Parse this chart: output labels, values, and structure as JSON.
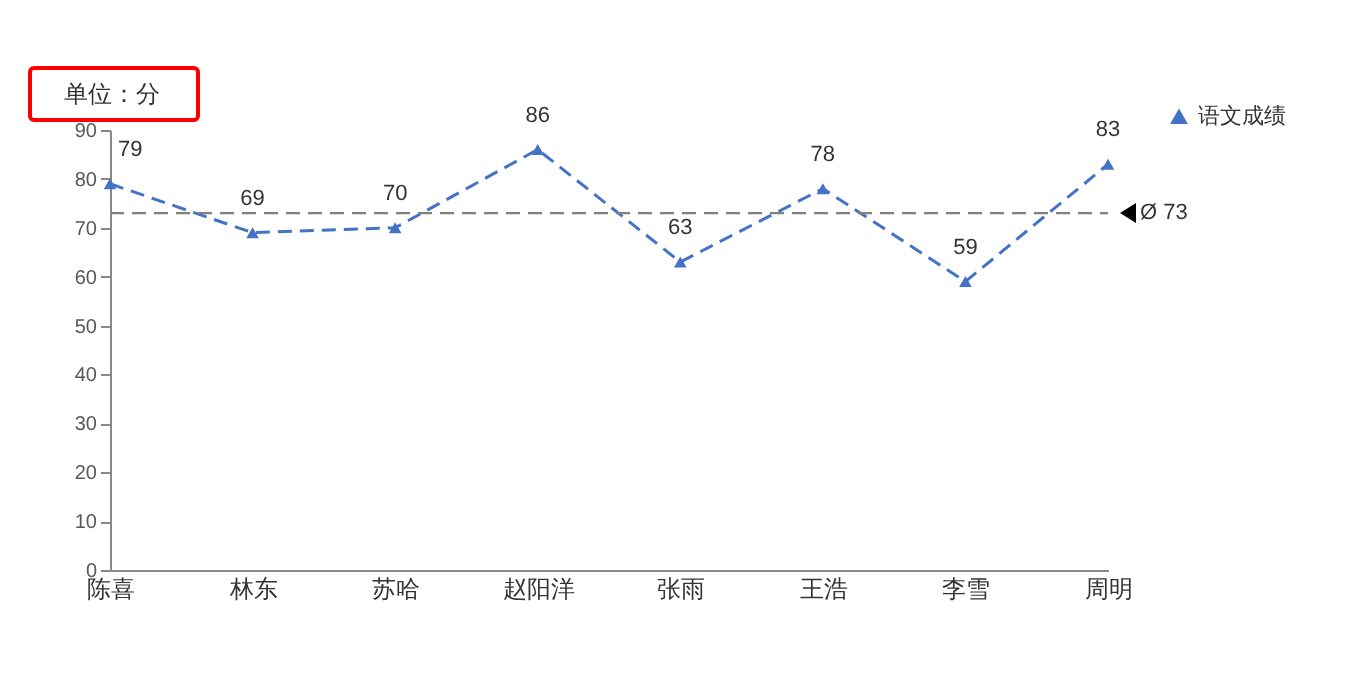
{
  "chart_data": {
    "type": "line",
    "categories": [
      "陈喜",
      "林东",
      "苏哈",
      "赵阳洋",
      "张雨",
      "王浩",
      "李雪",
      "周明"
    ],
    "series": [
      {
        "name": "语文成绩",
        "color": "#4472c4",
        "values": [
          79,
          69,
          70,
          86,
          63,
          78,
          59,
          83
        ]
      }
    ],
    "ylim": [
      0,
      90
    ],
    "yticks": [
      0,
      10,
      20,
      30,
      40,
      50,
      60,
      70,
      80,
      90
    ],
    "grid": false,
    "legend": "top right",
    "marker": "triangle",
    "line_style": "dashed",
    "data_labels": true,
    "ref_lines": [
      {
        "axis": "y",
        "value": 73,
        "label": "Ø 73",
        "color": "#808080",
        "line_style": "dashed"
      }
    ],
    "annotations": [
      "单位：分"
    ]
  }
}
